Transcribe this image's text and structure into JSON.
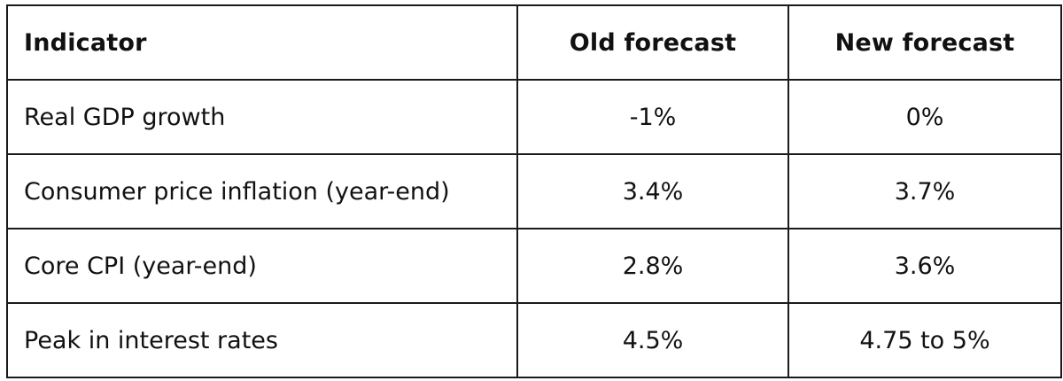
{
  "table": {
    "headers": [
      "Indicator",
      "Old forecast",
      "New forecast"
    ],
    "rows": [
      [
        "Real GDP growth",
        "-1%",
        "0%"
      ],
      [
        "Consumer price inflation (year-end)",
        "3.4%",
        "3.7%"
      ],
      [
        "Core CPI (year-end)",
        "2.8%",
        "3.6%"
      ],
      [
        "Peak in interest rates",
        "4.5%",
        "4.75 to 5%"
      ]
    ]
  }
}
